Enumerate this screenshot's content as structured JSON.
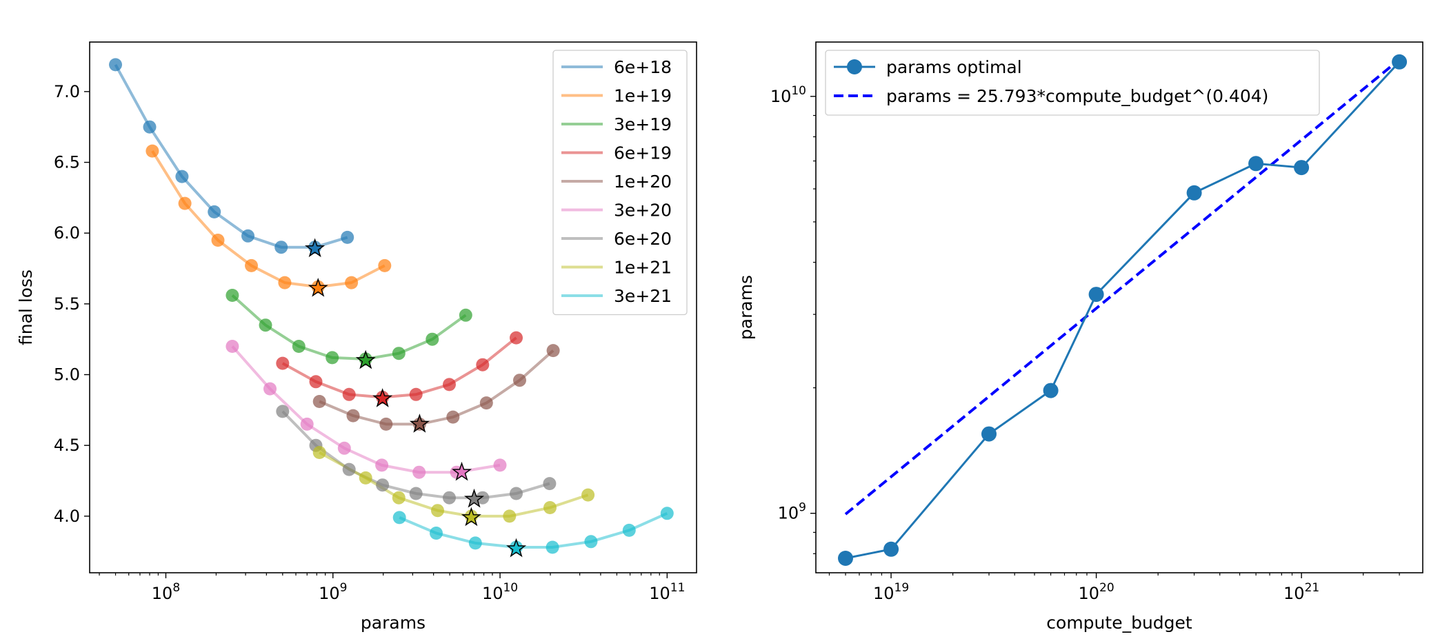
{
  "chart_data": [
    {
      "type": "line",
      "xlabel": "params",
      "ylabel": "final loss",
      "xscale": "log",
      "xlim": [
        35000000,
        150000000000
      ],
      "ylim": [
        3.6,
        7.35
      ],
      "xticks": [
        {
          "value": 100000000,
          "base": "10",
          "exp": "8"
        },
        {
          "value": 1000000000,
          "base": "10",
          "exp": "9"
        },
        {
          "value": 10000000000,
          "base": "10",
          "exp": "10"
        },
        {
          "value": 100000000000,
          "base": "10",
          "exp": "11"
        }
      ],
      "yticks": [
        {
          "value": 4.0,
          "label": "4.0"
        },
        {
          "value": 4.5,
          "label": "4.5"
        },
        {
          "value": 5.0,
          "label": "5.0"
        },
        {
          "value": 5.5,
          "label": "5.5"
        },
        {
          "value": 6.0,
          "label": "6.0"
        },
        {
          "value": 6.5,
          "label": "6.5"
        },
        {
          "value": 7.0,
          "label": "7.0"
        }
      ],
      "grid": false,
      "legend_position": "top-right",
      "series": [
        {
          "name": "6e+18",
          "color": "#1f77b4",
          "x": [
            50000000,
            80000000,
            125000000,
            195000000,
            310000000,
            490000000,
            780000000,
            1220000000
          ],
          "y": [
            7.19,
            6.75,
            6.4,
            6.15,
            5.98,
            5.9,
            5.9,
            5.97
          ],
          "optimum": {
            "x": 780000000,
            "y": 5.89
          }
        },
        {
          "name": "1e+19",
          "color": "#ff7f0e",
          "x": [
            83000000,
            130000000,
            205000000,
            325000000,
            515000000,
            815000000,
            1290000000,
            2040000000
          ],
          "y": [
            6.58,
            6.21,
            5.95,
            5.77,
            5.65,
            5.62,
            5.65,
            5.77
          ],
          "optimum": {
            "x": 815000000,
            "y": 5.61
          }
        },
        {
          "name": "3e+19",
          "color": "#2ca02c",
          "x": [
            250000000,
            395000000,
            625000000,
            990000000,
            1570000000,
            2480000000,
            3930000000,
            6230000000
          ],
          "y": [
            5.56,
            5.35,
            5.2,
            5.12,
            5.11,
            5.15,
            5.25,
            5.42
          ],
          "optimum": {
            "x": 1570000000,
            "y": 5.1
          }
        },
        {
          "name": "6e+19",
          "color": "#d62728",
          "x": [
            500000000,
            790000000,
            1250000000,
            1980000000,
            3140000000,
            4970000000,
            7870000000,
            12500000000
          ],
          "y": [
            5.08,
            4.95,
            4.86,
            4.84,
            4.86,
            4.93,
            5.07,
            5.26
          ],
          "optimum": {
            "x": 1980000000,
            "y": 4.83
          }
        },
        {
          "name": "1e+20",
          "color": "#8c564b",
          "x": [
            830000000,
            1320000000,
            2080000000,
            3300000000,
            5230000000,
            8290000000,
            13100000000,
            20800000000
          ],
          "y": [
            4.81,
            4.71,
            4.65,
            4.65,
            4.7,
            4.8,
            4.96,
            5.17
          ],
          "optimum": {
            "x": 3300000000,
            "y": 4.65
          }
        },
        {
          "name": "3e+20",
          "color": "#e377c2",
          "x": [
            250000000,
            420000000,
            700000000,
            1170000000,
            1960000000,
            3280000000,
            5500000000,
            10000000000
          ],
          "y": [
            5.2,
            4.9,
            4.65,
            4.48,
            4.36,
            4.31,
            4.31,
            4.36
          ],
          "optimum": {
            "x": 5900000000,
            "y": 4.31
          }
        },
        {
          "name": "6e+20",
          "color": "#7f7f7f",
          "x": [
            500000000,
            790000000,
            1250000000,
            1980000000,
            3140000000,
            4970000000,
            7870000000,
            12500000000,
            19800000000
          ],
          "y": [
            4.74,
            4.5,
            4.33,
            4.22,
            4.16,
            4.13,
            4.13,
            4.16,
            4.23
          ],
          "optimum": {
            "x": 7000000000,
            "y": 4.12
          }
        },
        {
          "name": "1e+21",
          "color": "#bcbd22",
          "x": [
            830000000,
            1570000000,
            2480000000,
            4230000000,
            6730000000,
            11400000000,
            19900000000,
            33600000000
          ],
          "y": [
            4.45,
            4.27,
            4.13,
            4.04,
            4.0,
            4.0,
            4.06,
            4.15
          ],
          "optimum": {
            "x": 6730000000,
            "y": 3.99
          }
        },
        {
          "name": "3e+21",
          "color": "#17becf",
          "x": [
            2500000000,
            4150000000,
            7120000000,
            12500000000,
            20600000000,
            35000000000,
            59300000000,
            100000000000
          ],
          "y": [
            3.99,
            3.88,
            3.81,
            3.78,
            3.78,
            3.82,
            3.9,
            4.02
          ],
          "optimum": {
            "x": 12500000000,
            "y": 3.77
          }
        }
      ]
    },
    {
      "type": "line",
      "xlabel": "compute_budget",
      "ylabel": "params",
      "xscale": "log",
      "yscale": "log",
      "xlim": [
        4300000000000000000,
        3900000000000000000000
      ],
      "ylim": [
        720000000,
        13500000000
      ],
      "xticks": [
        {
          "value": 10000000000000000000,
          "base": "10",
          "exp": "19"
        },
        {
          "value": 100000000000000000000,
          "base": "10",
          "exp": "20"
        },
        {
          "value": 1000000000000000000000,
          "base": "10",
          "exp": "21"
        }
      ],
      "yticks": [
        {
          "value": 1000000000,
          "base": "10",
          "exp": "9"
        },
        {
          "value": 10000000000,
          "base": "10",
          "exp": "10"
        }
      ],
      "grid": false,
      "legend_position": "top-left",
      "series": [
        {
          "name": "params optimal",
          "color": "#1f77b4",
          "style": "solid-markers",
          "x": [
            6000000000000000000,
            10000000000000000000,
            30000000000000000000,
            60000000000000000000,
            100000000000000000000,
            300000000000000000000,
            600000000000000000000,
            1000000000000000000000,
            3000000000000000000000
          ],
          "y": [
            780000000,
            820000000,
            1550000000,
            1970000000,
            3350000000,
            5870000000,
            6900000000,
            6750000000,
            12100000000
          ]
        },
        {
          "name": "params = 25.793*compute_budget^(0.404)",
          "color": "#0000ff",
          "style": "dashed",
          "coef": 25.793,
          "exponent": 0.404,
          "x": [
            6000000000000000000,
            3000000000000000000000
          ]
        }
      ]
    }
  ]
}
